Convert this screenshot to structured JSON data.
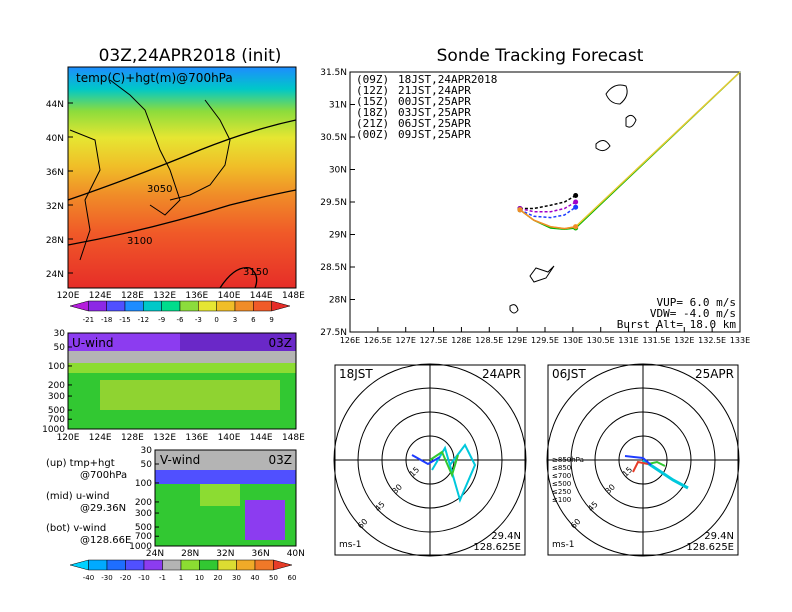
{
  "titles": {
    "left": "03Z,24APR2018 (init)",
    "right": "Sonde Tracking Forecast"
  },
  "panels": {
    "temp": {
      "label": "temp(C)+hgt(m)@700hPa",
      "lat_ticks": [
        "44N",
        "40N",
        "36N",
        "32N",
        "28N",
        "24N"
      ],
      "lon_ticks": [
        "120E",
        "124E",
        "128E",
        "132E",
        "136E",
        "140E",
        "144E",
        "148E"
      ],
      "contours": [
        "3050",
        "3100",
        "3150"
      ],
      "colorbar": [
        "-21",
        "-18",
        "-15",
        "-12",
        "-9",
        "-6",
        "-3",
        "0",
        "3",
        "6",
        "9"
      ],
      "colorbar_colors": [
        "#b41edc",
        "#8c28e6",
        "#5050ff",
        "#1e8cff",
        "#00c8c8",
        "#00dc8c",
        "#8cdc3c",
        "#e6e632",
        "#f0be28",
        "#f08c28",
        "#f05a28",
        "#e62d28"
      ]
    },
    "uwind": {
      "label": "U-wind",
      "time": "03Z",
      "p_ticks": [
        "30",
        "50",
        "100",
        "200",
        "300",
        "500",
        "700",
        "1000"
      ],
      "lon_ticks": [
        "120E",
        "124E",
        "128E",
        "132E",
        "136E",
        "140E",
        "144E",
        "148E"
      ]
    },
    "vwind": {
      "label": "V-wind",
      "time": "03Z",
      "p_ticks": [
        "30",
        "50",
        "100",
        "200",
        "300",
        "500",
        "700",
        "1000"
      ],
      "lat_ticks": [
        "24N",
        "28N",
        "32N",
        "36N",
        "40N"
      ]
    },
    "legend_text": [
      "(up) tmp+hgt",
      "@700hPa",
      "(mid) u-wind",
      "@29.36N",
      "(bot) v-wind",
      "@128.66E"
    ],
    "wind_colorbar": [
      "-40",
      "-30",
      "-20",
      "-10",
      "-1",
      "1",
      "10",
      "20",
      "30",
      "40",
      "50",
      "60"
    ],
    "wind_colorbar_colors": [
      "#00d2ff",
      "#00aaff",
      "#1e6eff",
      "#5050ff",
      "#8c3cf0",
      "#b4b4b4",
      "#8cdc32",
      "#32c832",
      "#dcdc32",
      "#f0aa28",
      "#f07828",
      "#e63c28"
    ]
  },
  "tracking": {
    "lat_ticks": [
      "31.5N",
      "31N",
      "30.5N",
      "30N",
      "29.5N",
      "29N",
      "28.5N",
      "28N",
      "27.5N"
    ],
    "lon_ticks": [
      "126E",
      "126.5E",
      "127E",
      "127.5E",
      "128E",
      "128.5E",
      "129E",
      "129.5E",
      "130E",
      "130.5E",
      "131E",
      "131.5E",
      "132E",
      "132.5E",
      "133E"
    ],
    "legend": [
      {
        "code": "(09Z)",
        "time": "18JST,24APR2018",
        "color": "#000000"
      },
      {
        "code": "(12Z)",
        "time": "21JST,24APR",
        "color": "#a000c8"
      },
      {
        "code": "(15Z)",
        "time": "00JST,25APR",
        "color": "#1e3cff"
      },
      {
        "code": "(18Z)",
        "time": "03JST,25APR",
        "color": "#00b400"
      },
      {
        "code": "(21Z)",
        "time": "06JST,25APR",
        "color": "#e6c832"
      },
      {
        "code": "(00Z)",
        "time": "09JST,25APR",
        "color": "#f08c28"
      }
    ],
    "params": [
      "VUP=  6.0 m/s",
      "VDW= -4.0 m/s",
      "Burst Alt= 18.0 km"
    ]
  },
  "chart_data": [
    {
      "type": "line",
      "title": "Sonde Tracking Forecast",
      "xlim": [
        126,
        133
      ],
      "ylim": [
        27.5,
        31.5
      ],
      "series": [
        {
          "name": "(09Z) 18JST,24APR2018",
          "x": [
            129.05,
            129.3,
            129.6,
            129.85,
            130.05
          ],
          "y": [
            29.4,
            29.4,
            29.45,
            29.5,
            29.6
          ]
        },
        {
          "name": "(12Z) 21JST,24APR",
          "x": [
            129.05,
            129.3,
            129.6,
            129.85,
            130.05
          ],
          "y": [
            29.4,
            29.35,
            29.35,
            29.4,
            29.5
          ]
        },
        {
          "name": "(15Z) 00JST,25APR",
          "x": [
            129.05,
            129.3,
            129.6,
            129.85,
            130.05
          ],
          "y": [
            29.38,
            29.28,
            29.26,
            29.3,
            29.42
          ]
        },
        {
          "name": "(18Z) 03JST,25APR",
          "x": [
            129.05,
            129.3,
            129.6,
            129.85,
            130.05,
            133
          ],
          "y": [
            29.38,
            29.22,
            29.1,
            29.08,
            29.1,
            31.5
          ]
        },
        {
          "name": "(21Z) 06JST,25APR",
          "x": [
            129.05,
            129.3,
            129.6,
            129.85,
            130.05,
            133
          ],
          "y": [
            29.38,
            29.22,
            29.12,
            29.09,
            29.12,
            31.5
          ]
        },
        {
          "name": "(00Z) 09JST,25APR",
          "x": [
            129.05,
            129.3,
            129.6,
            129.85,
            130.05
          ],
          "y": [
            29.38,
            29.22,
            29.12,
            29.09,
            29.12
          ]
        }
      ]
    }
  ],
  "hodographs": [
    {
      "time": "18JST",
      "date": "24APR",
      "lat": "29.4N",
      "lon": "128.625E",
      "units": "ms-1",
      "rings": [
        "15",
        "30",
        "45",
        "60"
      ],
      "levels": []
    },
    {
      "time": "06JST",
      "date": "25APR",
      "lat": "29.4N",
      "lon": "128.625E",
      "units": "ms-1",
      "rings": [
        "15",
        "30",
        "45",
        "60"
      ],
      "levels": [
        {
          "label": "≥850hPa",
          "color": "#e63c28"
        },
        {
          "label": "≤850",
          "color": "#f08c28"
        },
        {
          "label": "≤700",
          "color": "#e6c832"
        },
        {
          "label": "≤500",
          "color": "#32c832"
        },
        {
          "label": "≤250",
          "color": "#00c8dc"
        },
        {
          "label": "≤100",
          "color": "#1e3cff"
        }
      ]
    }
  ]
}
